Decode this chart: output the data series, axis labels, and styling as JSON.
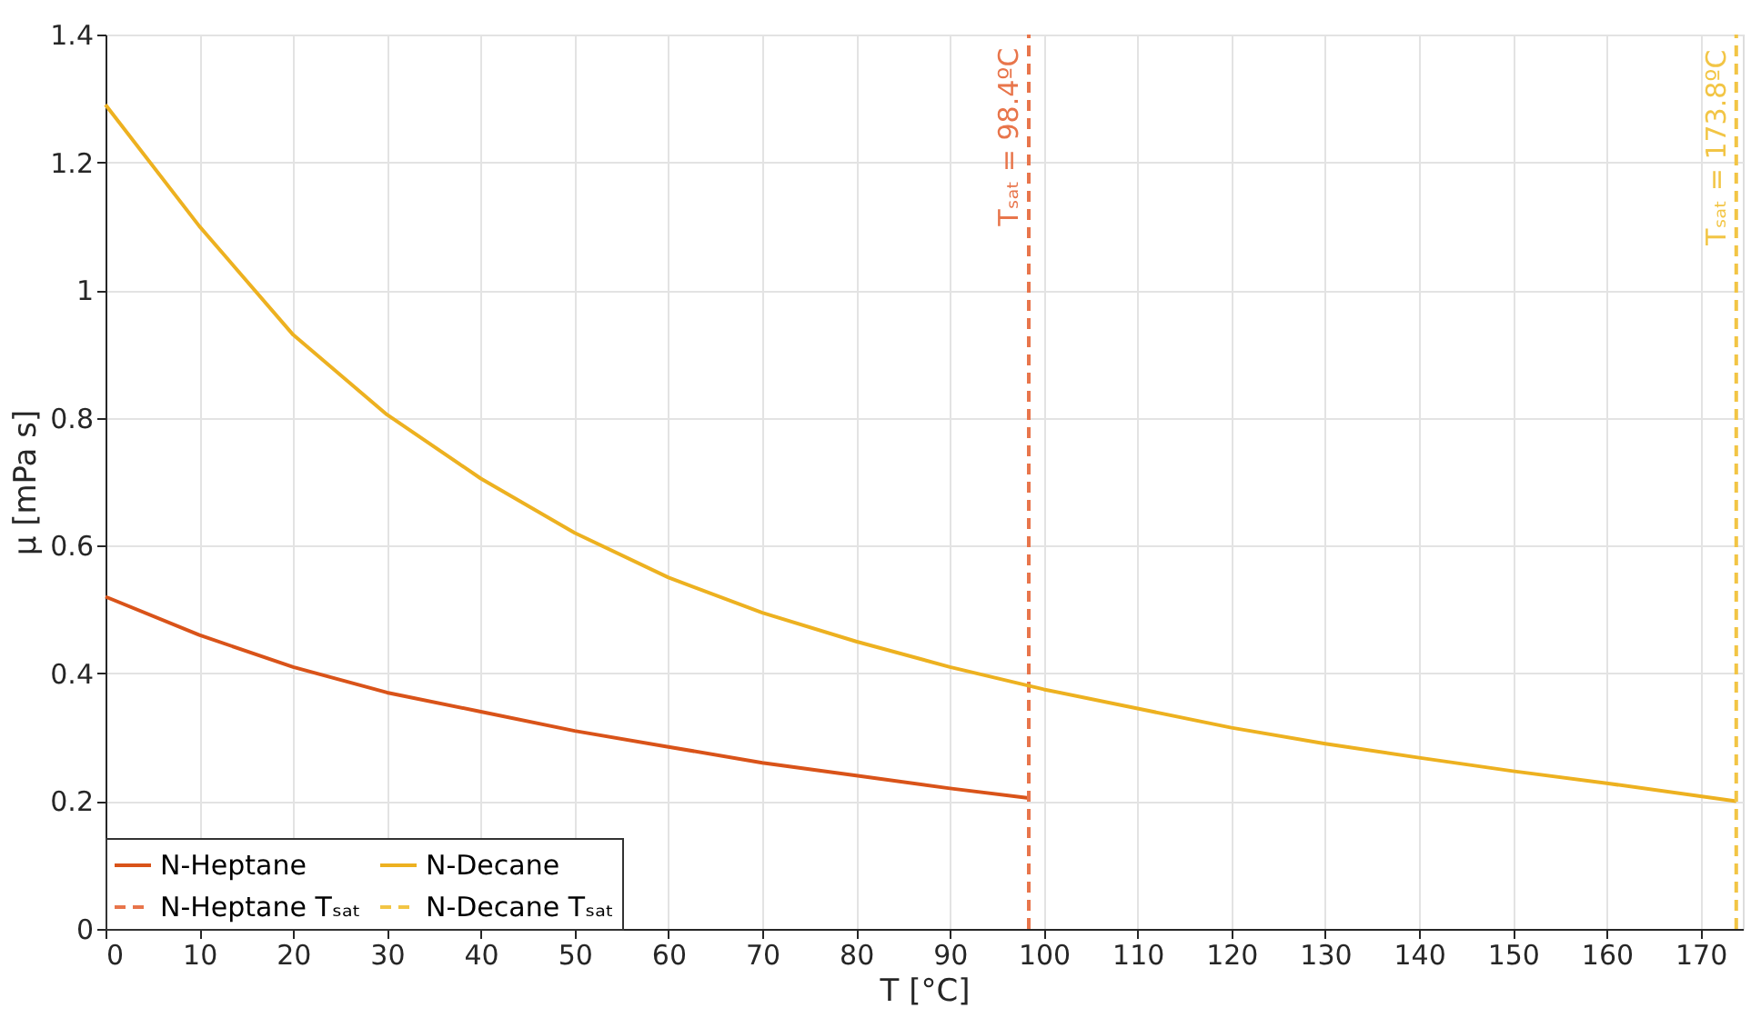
{
  "chart_data": {
    "type": "line",
    "xlabel": "T [°C]",
    "ylabel": "μ [mPa s]",
    "xlim": [
      0,
      174.5
    ],
    "xticks": [
      0,
      10,
      20,
      30,
      40,
      50,
      60,
      70,
      80,
      90,
      100,
      110,
      120,
      130,
      140,
      150,
      160,
      170
    ],
    "ylim": [
      0,
      1.4
    ],
    "yticks": [
      0,
      0.2,
      0.4,
      0.6,
      0.8,
      1,
      1.2,
      1.4
    ],
    "grid": true,
    "legend": "bottom left",
    "line_style": "solid",
    "series": [
      {
        "name": "N-Heptane",
        "color": "#d95319",
        "x": [
          0,
          10,
          20,
          30,
          40,
          50,
          60,
          70,
          80,
          90,
          98.4
        ],
        "values": [
          0.52,
          0.46,
          0.41,
          0.37,
          0.34,
          0.31,
          0.285,
          0.26,
          0.24,
          0.22,
          0.205
        ]
      },
      {
        "name": "N-Heptane Tₛₐₜ",
        "color": "#e8754b",
        "line_style": "dashed",
        "x": [
          98.4,
          98.4
        ],
        "values": [
          0,
          1.4
        ]
      },
      {
        "name": "N-Decane",
        "color": "#edb120",
        "x": [
          0,
          10,
          20,
          30,
          40,
          50,
          60,
          70,
          80,
          90,
          100,
          110,
          120,
          130,
          140,
          150,
          160,
          173.8
        ],
        "values": [
          1.29,
          1.1,
          0.93,
          0.805,
          0.705,
          0.62,
          0.55,
          0.495,
          0.45,
          0.41,
          0.375,
          0.345,
          0.315,
          0.29,
          0.268,
          0.247,
          0.228,
          0.2
        ]
      },
      {
        "name": "N-Decane Tₛₐₜ",
        "color": "#f2c545",
        "line_style": "dashed",
        "x": [
          173.8,
          173.8
        ],
        "values": [
          0,
          1.4
        ]
      }
    ],
    "annotations": [
      {
        "text": "Tₛₐₜ = 98.4ºC",
        "x": 98.4,
        "y": 1.1
      },
      {
        "text": "Tₛₐₜ = 173.8ºC",
        "x": 173.8,
        "y": 1.07
      }
    ]
  }
}
